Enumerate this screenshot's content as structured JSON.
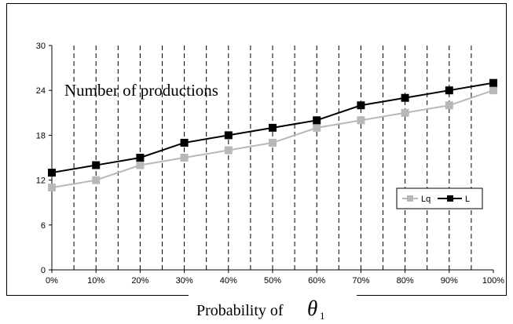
{
  "chart_data": {
    "type": "line",
    "title": "",
    "annotation": "Number of productions",
    "xlabel_prefix": "Probability of",
    "xlabel_symbol": "θ",
    "xlabel_subscript": "1",
    "ylabel": "",
    "categories": [
      "0%",
      "10%",
      "20%",
      "30%",
      "40%",
      "50%",
      "60%",
      "70%",
      "80%",
      "90%",
      "100%"
    ],
    "ylim": [
      0,
      30
    ],
    "yticks": [
      "0",
      "6",
      "12",
      "18",
      "24",
      "30"
    ],
    "grid": "dashed vertical lines",
    "legend_position": "right",
    "series": [
      {
        "name": "Lq",
        "values": [
          11,
          12,
          14,
          15,
          16,
          17,
          19,
          20,
          21,
          22,
          24
        ],
        "color": "#b8b8b8"
      },
      {
        "name": "L",
        "values": [
          13,
          14,
          15,
          17,
          18,
          19,
          20,
          22,
          23,
          24,
          25
        ],
        "color": "#000000"
      }
    ]
  }
}
